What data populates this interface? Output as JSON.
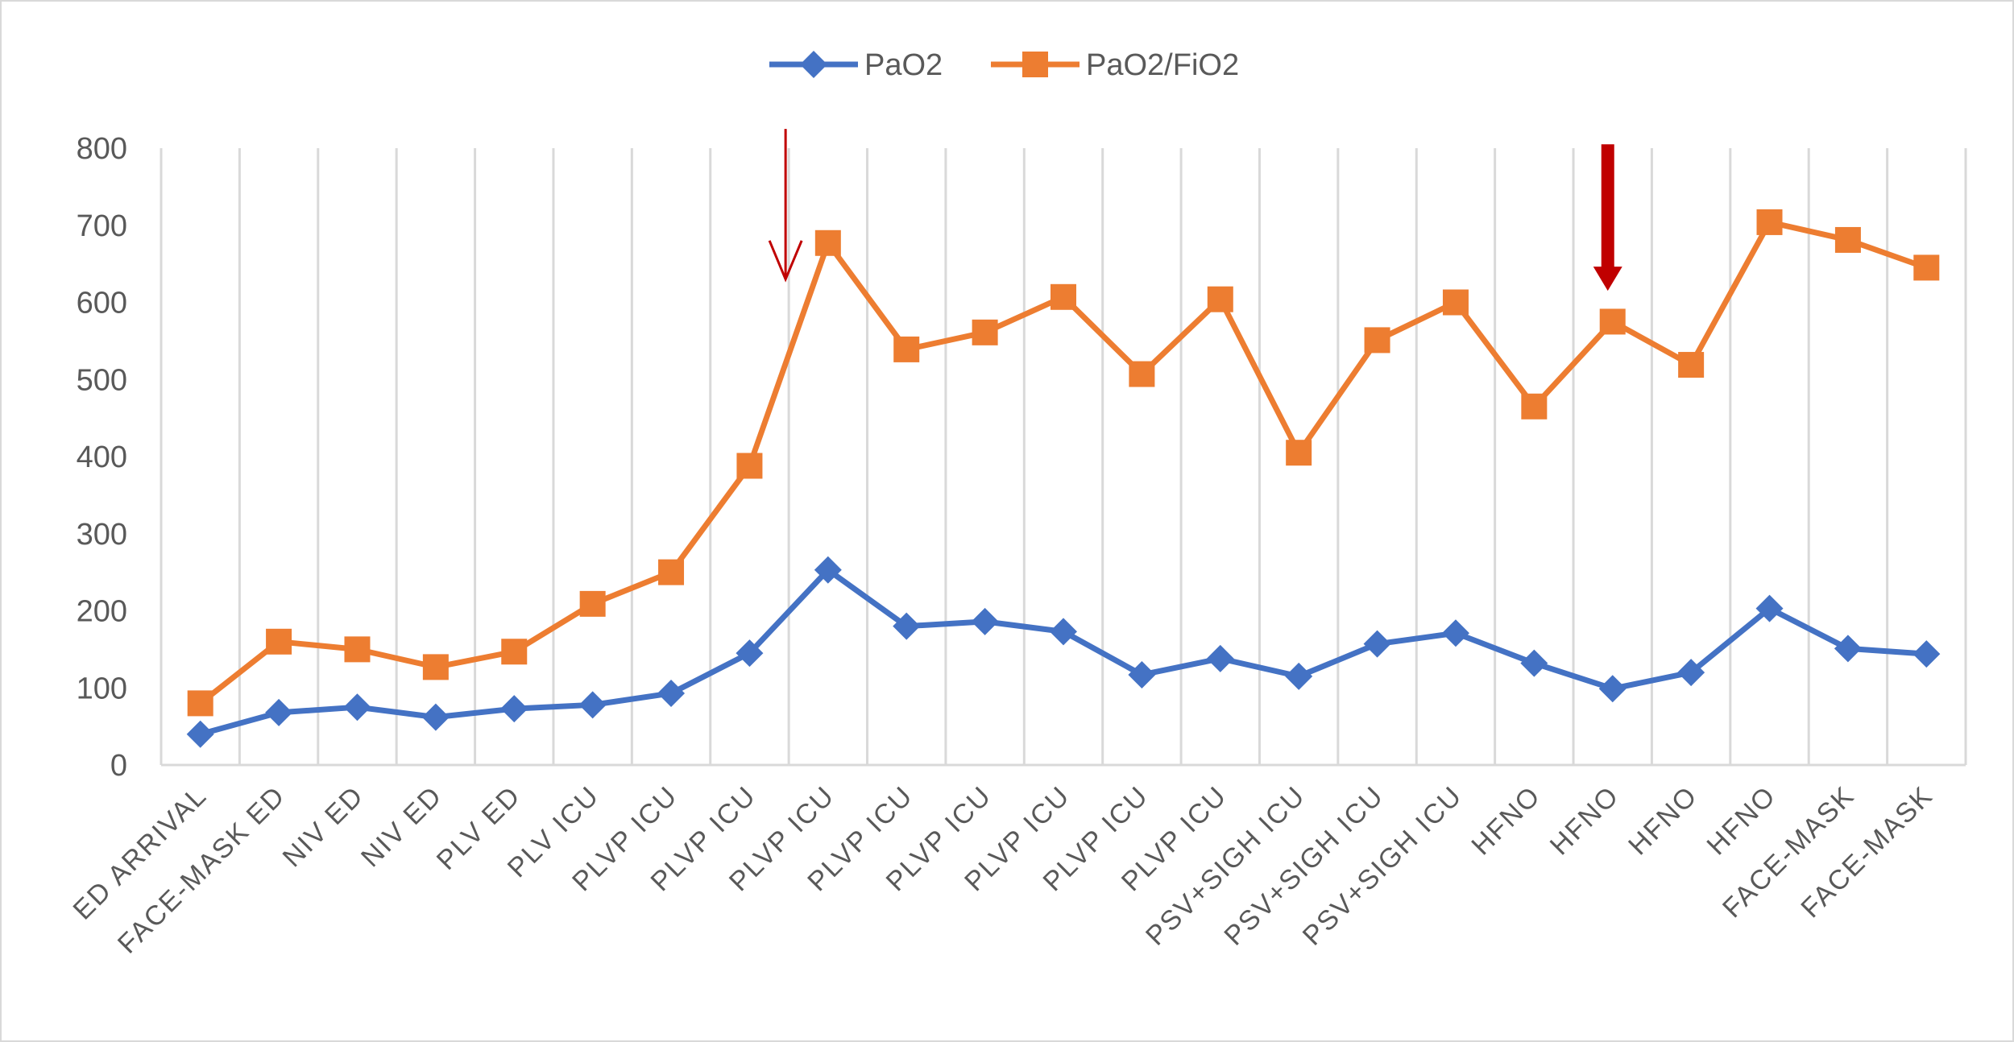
{
  "chart_data": {
    "type": "line",
    "title": "",
    "xlabel": "",
    "ylabel": "",
    "ylim": [
      0,
      800
    ],
    "yticks": [
      0,
      100,
      200,
      300,
      400,
      500,
      600,
      700,
      800
    ],
    "grid": "vertical",
    "legend_position": "top-center",
    "categories": [
      "ED ARRIVAL",
      "FACE-MASK ED",
      "NIV ED",
      "NIV ED",
      "PLV ED",
      "PLV ICU",
      "PLVP ICU",
      "PLVP ICU",
      "PLVP ICU",
      "PLVP ICU",
      "PLVP ICU",
      "PLVP ICU",
      "PLVP ICU",
      "PLVP ICU",
      "PSV+SIGH ICU",
      "PSV+SIGH ICU",
      "PSV+SIGH ICU",
      "HFNO",
      "HFNO",
      "HFNO",
      "HFNO",
      "FACE-MASK",
      "FACE-MASK"
    ],
    "series": [
      {
        "name": "PaO2",
        "color": "#4472c4",
        "marker": "diamond",
        "values": [
          40,
          68,
          75,
          62,
          73,
          78,
          93,
          145,
          253,
          180,
          186,
          173,
          117,
          138,
          115,
          157,
          171,
          132,
          99,
          120,
          203,
          151,
          144
        ]
      },
      {
        "name": "PaO2/FiO2",
        "color": "#ed7d31",
        "marker": "square",
        "values": [
          80,
          160,
          150,
          127,
          147,
          209,
          250,
          388,
          677,
          539,
          561,
          607,
          507,
          604,
          405,
          551,
          600,
          465,
          575,
          519,
          704,
          681,
          645
        ]
      }
    ],
    "annotations": [
      {
        "type": "arrow",
        "style": "thin",
        "color": "#c00000",
        "x_between": [
          7,
          8
        ],
        "y_from": 825,
        "y_to": 630
      },
      {
        "type": "arrow",
        "style": "bold",
        "color": "#c00000",
        "x_index": 18,
        "y_from": 805,
        "y_to": 615
      }
    ]
  }
}
